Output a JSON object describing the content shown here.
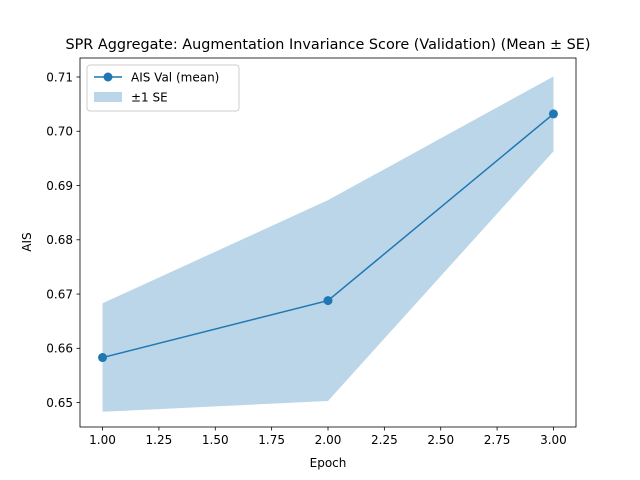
{
  "chart_data": {
    "type": "line",
    "title": "SPR Aggregate: Augmentation Invariance Score (Validation) (Mean ± SE)",
    "xlabel": "Epoch",
    "ylabel": "AIS",
    "xlim": [
      0.9,
      3.1
    ],
    "ylim": [
      0.6455,
      0.7135
    ],
    "x_ticks": [
      "1.00",
      "1.25",
      "1.50",
      "1.75",
      "2.00",
      "2.25",
      "2.50",
      "2.75",
      "3.00"
    ],
    "y_ticks": [
      "0.65",
      "0.66",
      "0.67",
      "0.68",
      "0.69",
      "0.70",
      "0.71"
    ],
    "grid": false,
    "legend_position": "top-left",
    "series": [
      {
        "name": "AIS Val (mean)",
        "x": [
          1,
          2,
          3
        ],
        "values": [
          0.6583,
          0.6688,
          0.7032
        ],
        "color": "#1f77b4"
      }
    ],
    "band": {
      "name": "±1 SE",
      "x": [
        1,
        2,
        3
      ],
      "lower": [
        0.6483,
        0.6503,
        0.6963
      ],
      "upper": [
        0.6683,
        0.6873,
        0.7101
      ],
      "color": "#1f77b4",
      "opacity": 0.3
    }
  }
}
